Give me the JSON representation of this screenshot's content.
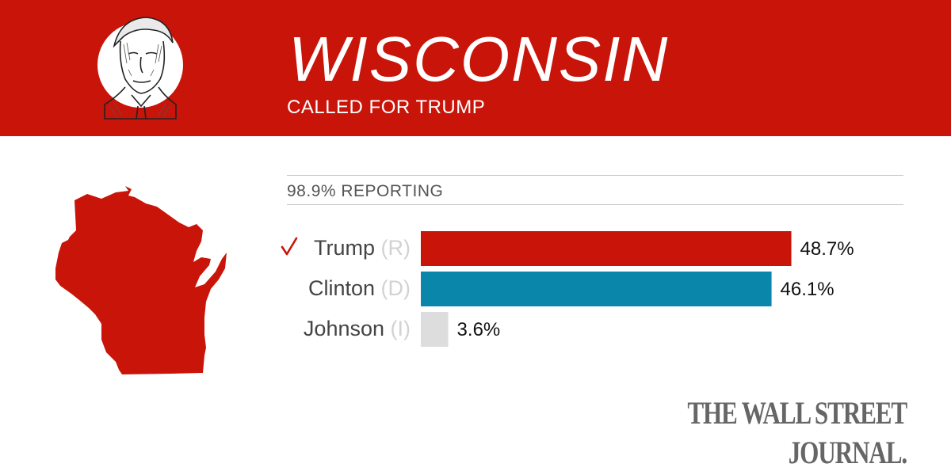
{
  "header": {
    "state": "WISCONSIN",
    "called": "CALLED FOR TRUMP",
    "color": "#c91409"
  },
  "reporting": "98.9% REPORTING",
  "winner_icon": "check-mark-icon",
  "chart_data": {
    "type": "bar",
    "orientation": "horizontal",
    "categories": [
      "Trump",
      "Clinton",
      "Johnson"
    ],
    "parties": [
      "(R)",
      "(D)",
      "(I)"
    ],
    "values": [
      48.7,
      46.1,
      3.6
    ],
    "value_labels": [
      "48.7%",
      "46.1%",
      "3.6%"
    ],
    "colors": [
      "#c91409",
      "#0a86ab",
      "#dddddd"
    ],
    "winner": "Trump",
    "xlim": [
      0,
      50
    ]
  },
  "footer": {
    "publisher": "THE WALL STREET JOURNAL."
  }
}
